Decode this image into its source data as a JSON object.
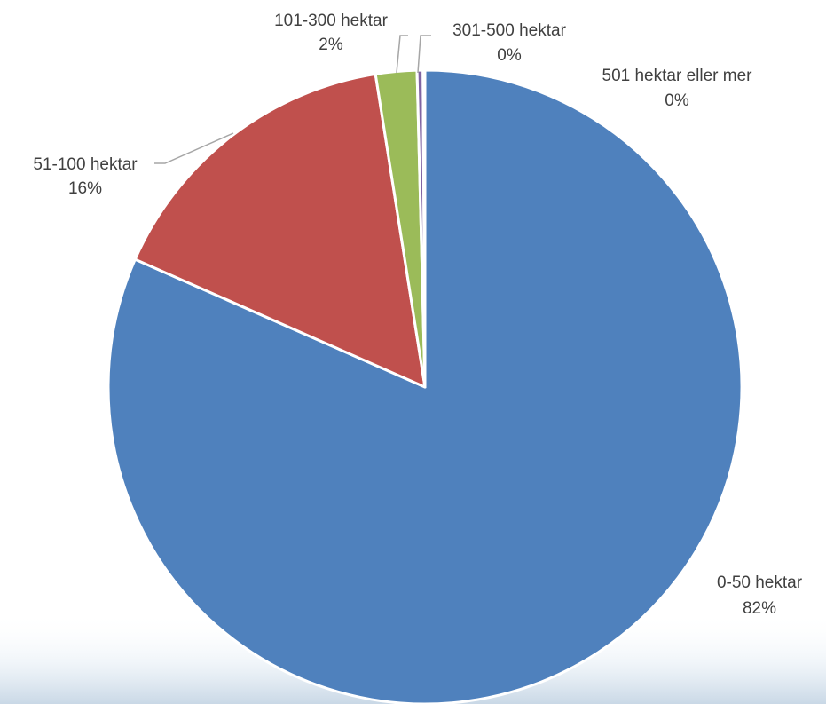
{
  "chart_data": {
    "type": "pie",
    "title": "",
    "start_angle_deg": 0,
    "direction": "clockwise",
    "slices": [
      {
        "label": "0-50 hektar",
        "value": 81.6,
        "percent_label": "82%",
        "color": "#4F81BD"
      },
      {
        "label": "51-100 hektar",
        "value": 15.9,
        "percent_label": "16%",
        "color": "#C0504D"
      },
      {
        "label": "101-300 hektar",
        "value": 2.1,
        "percent_label": "2%",
        "color": "#9BBB59"
      },
      {
        "label": "301-500 hektar",
        "value": 0.3,
        "percent_label": "0%",
        "color": "#8064A2"
      },
      {
        "label": "501 hektar eller mer",
        "value": 0.1,
        "percent_label": "0%",
        "color": "#4BACC6"
      }
    ]
  }
}
